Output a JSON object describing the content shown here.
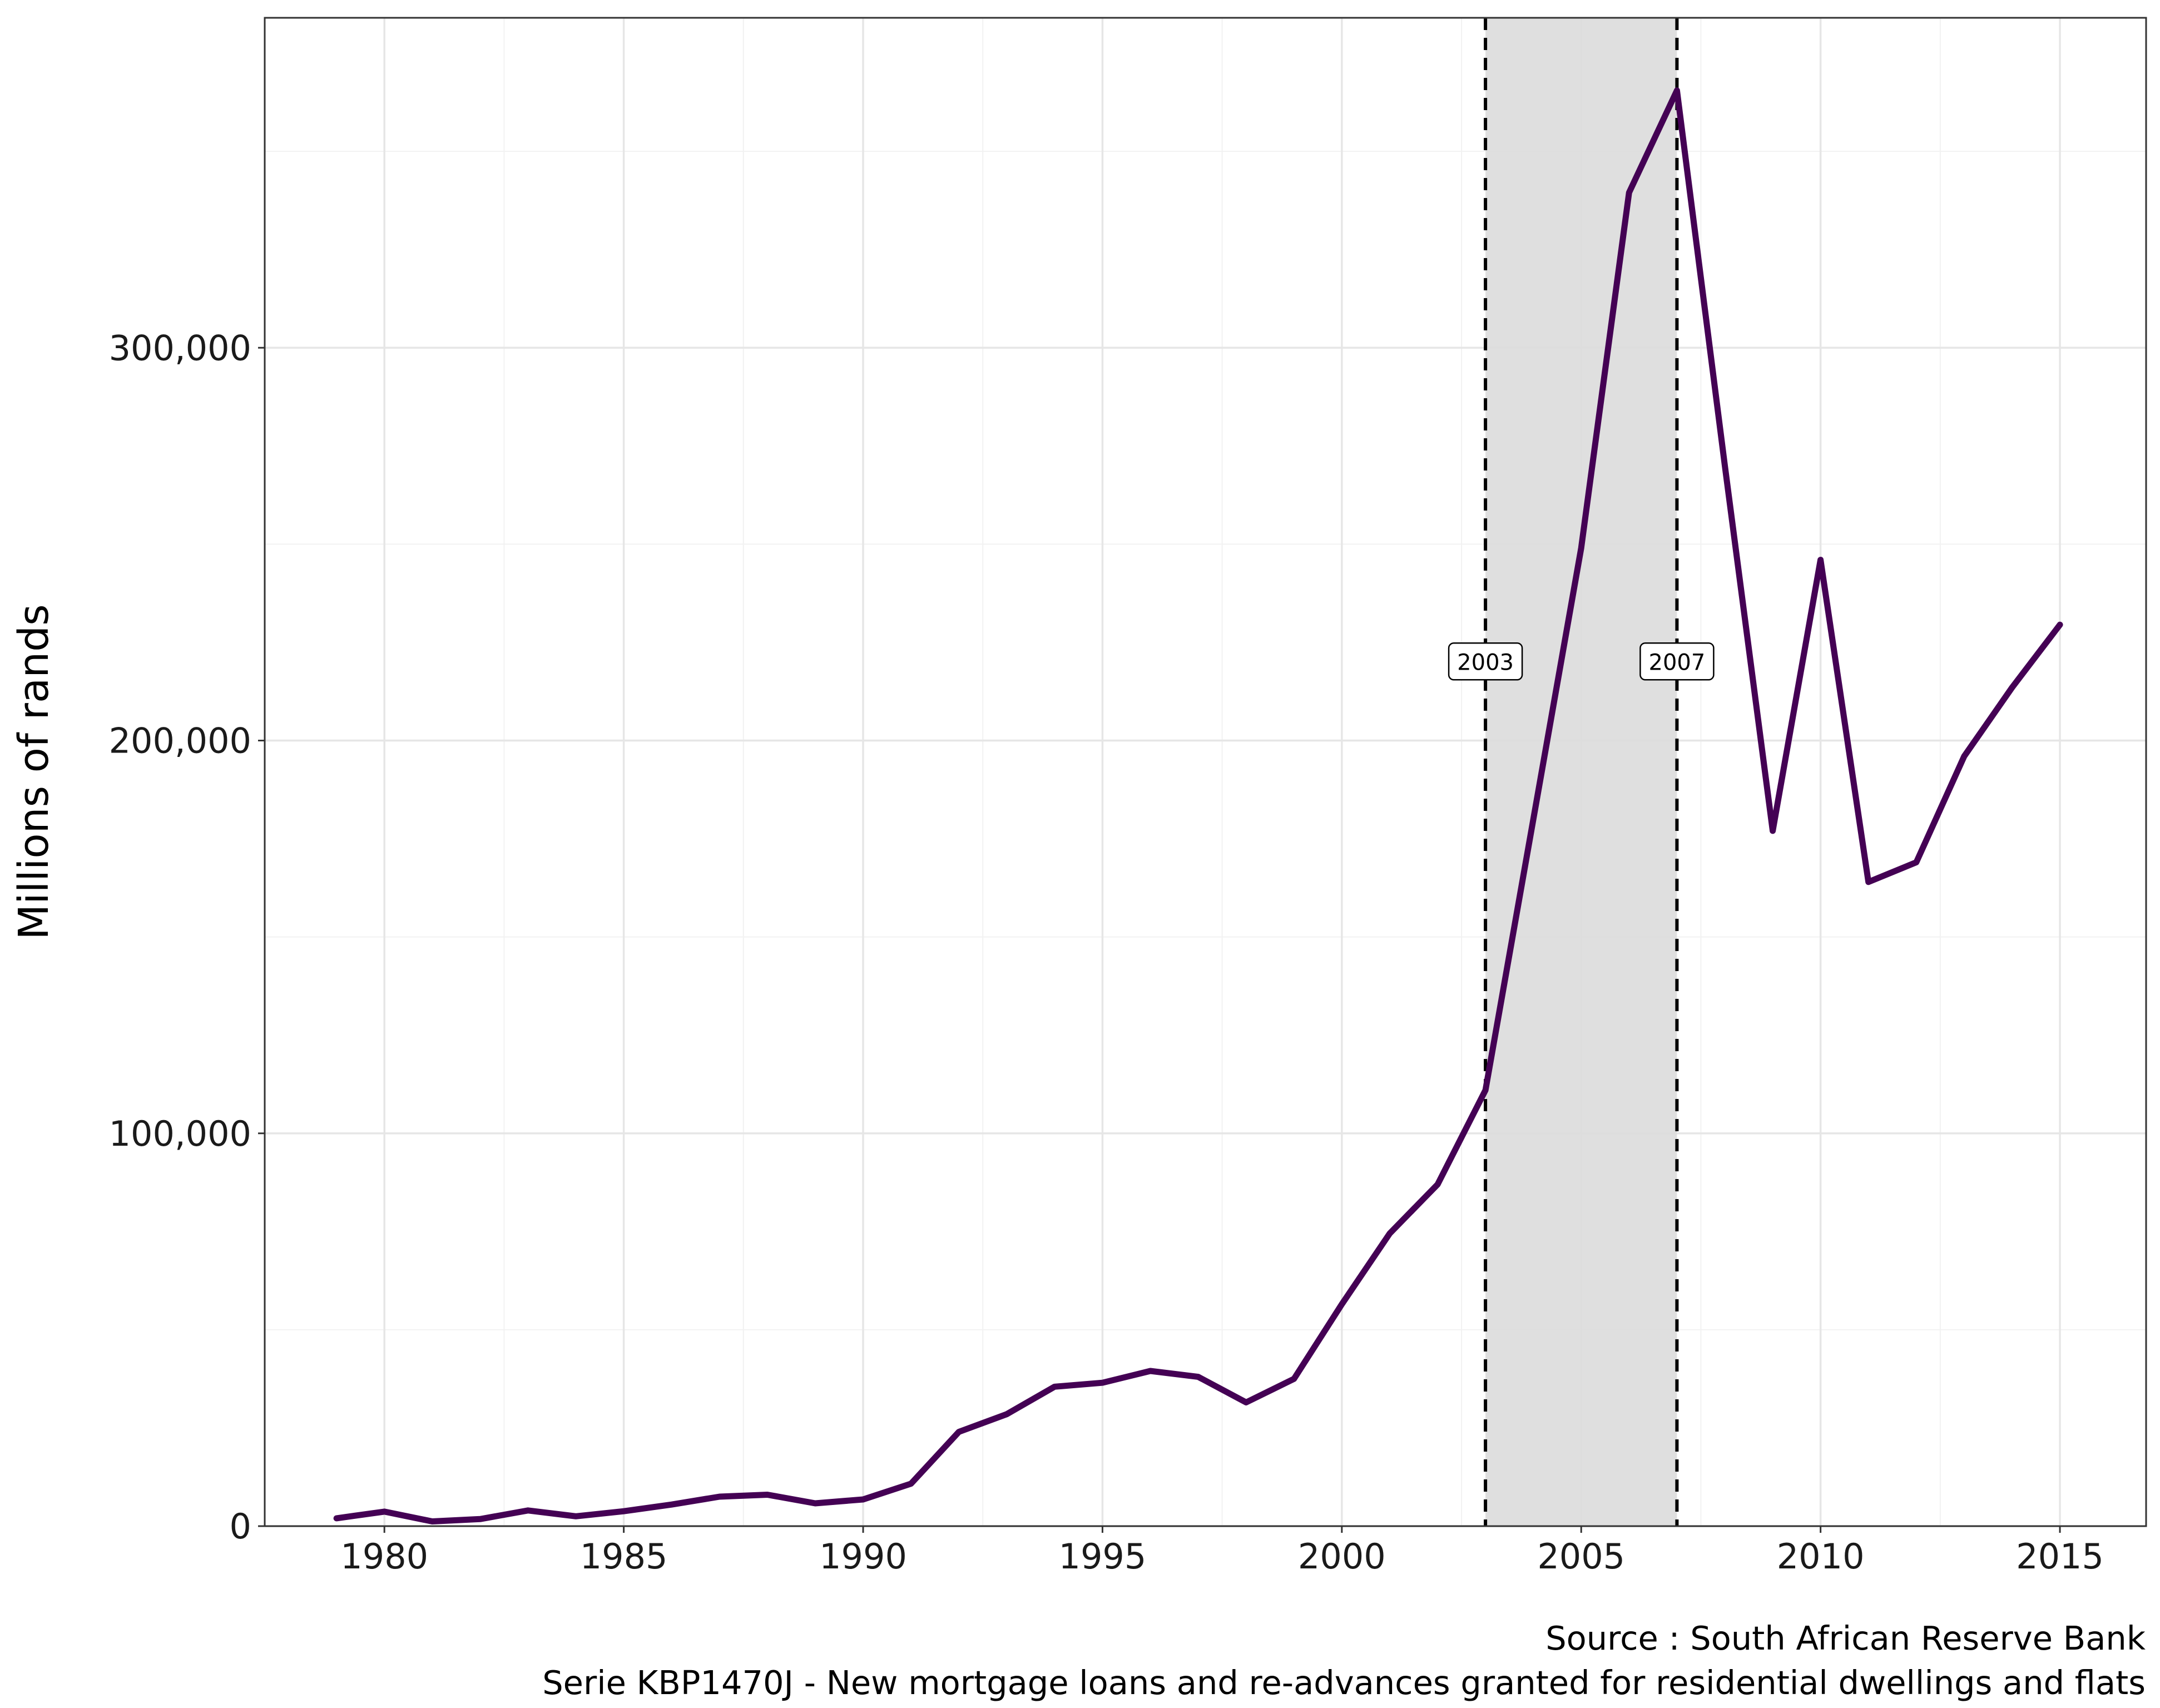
{
  "chart_data": {
    "type": "line",
    "xlabel": "",
    "ylabel": "Millions of rands",
    "xlim": [
      1977.5,
      2016.8
    ],
    "ylim": [
      0,
      384000
    ],
    "x_ticks": [
      1980,
      1985,
      1990,
      1995,
      2000,
      2005,
      2010,
      2015
    ],
    "x_tick_labels": [
      "1980",
      "1985",
      "1990",
      "1995",
      "2000",
      "2005",
      "2010",
      "2015"
    ],
    "y_ticks": [
      0,
      100000,
      200000,
      300000
    ],
    "y_tick_labels": [
      "0",
      "100,000",
      "200,000",
      "300,000"
    ],
    "y_minor": [
      50000,
      150000,
      250000,
      350000
    ],
    "grid": true,
    "line_color": "#440154",
    "shade_color": "#dcdcdc",
    "series": [
      {
        "x": [
          1979,
          1980,
          1981,
          1982,
          1983,
          1984,
          1985,
          1986,
          1987,
          1988,
          1989,
          1990,
          1991,
          1992,
          1993,
          1994,
          1995,
          1996,
          1997,
          1998,
          1999,
          2000,
          2001,
          2002,
          2003,
          2004,
          2005,
          2006,
          2007,
          2008,
          2009,
          2010,
          2011,
          2012,
          2013,
          2014,
          2015
        ],
        "y": [
          2000,
          3700,
          1200,
          1800,
          4000,
          2500,
          3800,
          5500,
          7500,
          8000,
          5800,
          6800,
          10800,
          24000,
          28500,
          35500,
          36500,
          39500,
          38000,
          31500,
          37500,
          56500,
          74500,
          87000,
          111000,
          180000,
          249000,
          339500,
          365500,
          270000,
          177000,
          246000,
          164000,
          169000,
          196000,
          213500,
          229500
        ]
      }
    ],
    "shaded_region": {
      "x_start": 2003,
      "x_end": 2007
    },
    "vlines": [
      {
        "x": 2003,
        "label": "2003"
      },
      {
        "x": 2007,
        "label": "2007"
      }
    ],
    "annotation_y": 220000,
    "caption": [
      "Source : South African Reserve Bank",
      "Serie KBP1470J - New mortgage loans and re-advances granted for residential dwellings and flats"
    ]
  }
}
